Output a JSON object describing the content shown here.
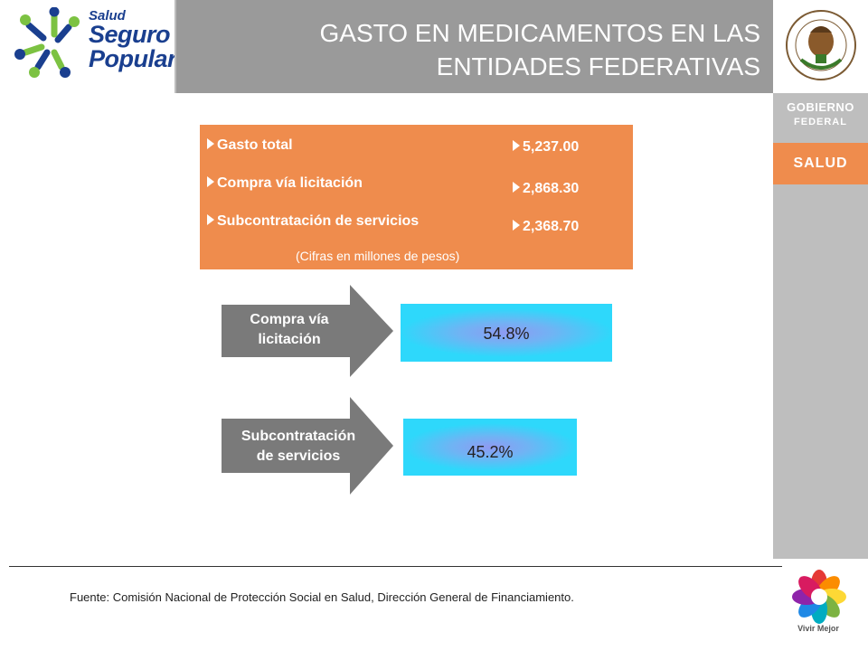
{
  "header": {
    "logo": {
      "line1": "Salud",
      "line2": "Seguro",
      "line3": "Popular"
    },
    "title_line1": "GASTO EN MEDICAMENTOS EN LAS",
    "title_line2": "ENTIDADES FEDERATIVAS"
  },
  "sidebar": {
    "seal_icon": "mexico-coat-of-arms-icon",
    "gobierno_line1": "GOBIERNO",
    "gobierno_line2": "FEDERAL",
    "salud": "SALUD",
    "vivir_mejor_icon": "vivir-mejor-flower-icon",
    "vivir_mejor": "Vivir Mejor"
  },
  "summary": {
    "items": [
      {
        "label": "Gasto total",
        "value": "5,237.00"
      },
      {
        "label": "Compra vía licitación",
        "value": "2,868.30"
      },
      {
        "label": "Subcontratación de servicios",
        "value": "2,368.70"
      }
    ],
    "note": "(Cifras en millones de pesos)"
  },
  "breakdown": [
    {
      "label_line1": "Compra vía",
      "label_line2": "licitación",
      "percent": "54.8%"
    },
    {
      "label_line1": "Subcontratación",
      "label_line2": "de servicios",
      "percent": "45.2%"
    }
  ],
  "colors": {
    "orange": "#ef8c4d",
    "grey": "#9a9a9a",
    "arrow_grey": "#7a7a7a",
    "cyan": "#2ed8fb"
  },
  "footer": {
    "source": "Fuente: Comisión Nacional de Protección Social en Salud, Dirección General de Financiamiento."
  }
}
